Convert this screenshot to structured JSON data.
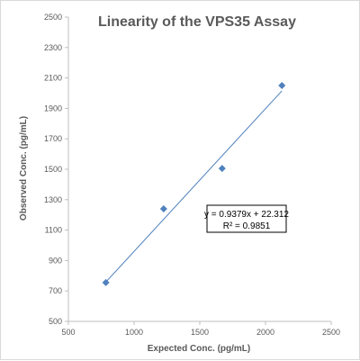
{
  "chart_data": {
    "type": "scatter",
    "title": "Linearity of the VPS35 Assay",
    "xlabel": "Expected Conc. (pg/mL)",
    "ylabel": "Observed Conc. (pg/mL)",
    "xlim": [
      500,
      2500
    ],
    "ylim": [
      500,
      2500
    ],
    "x_ticks": [
      "500",
      "1000",
      "1500",
      "2000",
      "2500"
    ],
    "y_ticks": [
      "500",
      "700",
      "900",
      "1100",
      "1300",
      "1500",
      "1700",
      "1900",
      "2100",
      "2300",
      "2500"
    ],
    "grid": false,
    "points": [
      {
        "x": 785,
        "y": 755
      },
      {
        "x": 1225,
        "y": 1240
      },
      {
        "x": 1670,
        "y": 1505
      },
      {
        "x": 2125,
        "y": 2050
      }
    ],
    "trendline": {
      "slope": 0.9379,
      "intercept": 22.312,
      "x_range": [
        785,
        2125
      ],
      "equation": "y = 0.9379x + 22.312",
      "r_squared": "R² = 0.9851"
    },
    "colors": {
      "marker": "#4f81bd",
      "trendline": "#4f81bd",
      "axis": "#bfbfbf",
      "text": "#595959"
    }
  }
}
